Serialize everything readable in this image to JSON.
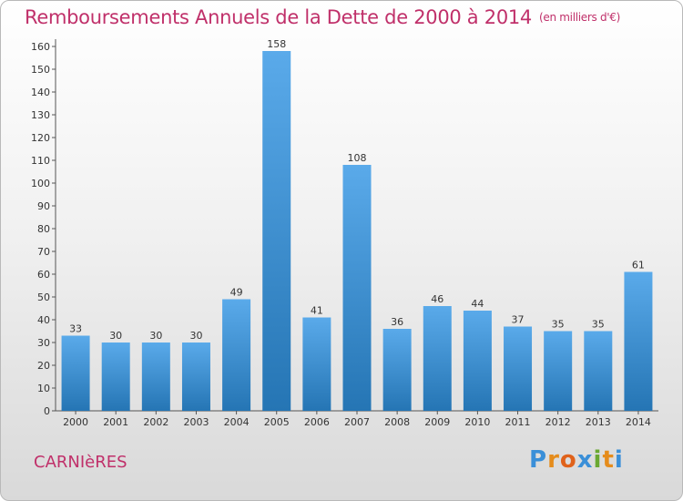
{
  "title": "Remboursements Annuels de la Dette de 2000 à 2014",
  "unit": "(en milliers d'€)",
  "town": "CARNIèRES",
  "logo": {
    "letters": [
      "P",
      "r",
      "o",
      "x",
      "i",
      "t",
      "i"
    ],
    "colors": [
      "#3a8fd8",
      "#e58c1c",
      "#e0621b",
      "#3a8fd8",
      "#6aa832",
      "#e58c1c",
      "#3a8fd8"
    ]
  },
  "colors": {
    "bar_top": "#5aaaea",
    "bar_bottom": "#2575b4",
    "accent": "#c0306a",
    "grid": "#9a9a9a"
  },
  "chart_data": {
    "type": "bar",
    "title": "Remboursements Annuels de la Dette de 2000 à 2014",
    "categories": [
      "2000",
      "2001",
      "2002",
      "2003",
      "2004",
      "2005",
      "2006",
      "2007",
      "2008",
      "2009",
      "2010",
      "2011",
      "2012",
      "2013",
      "2014"
    ],
    "values": [
      33,
      30,
      30,
      30,
      49,
      158,
      41,
      108,
      36,
      46,
      44,
      37,
      35,
      35,
      61
    ],
    "ylim": [
      0,
      160
    ],
    "yticks": [
      0,
      10,
      20,
      30,
      40,
      50,
      60,
      70,
      80,
      90,
      100,
      110,
      120,
      130,
      140,
      150,
      160
    ],
    "grid": false,
    "data_labels": true
  }
}
